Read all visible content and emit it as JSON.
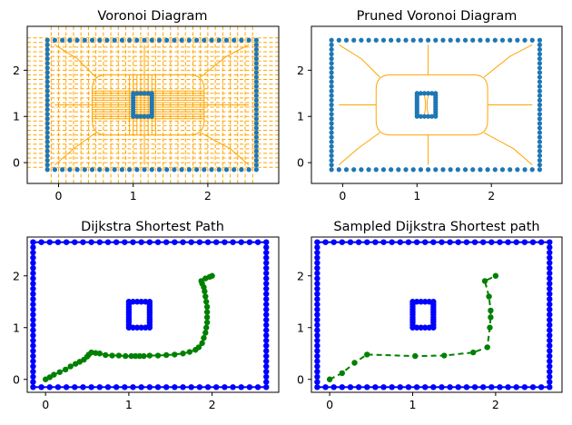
{
  "chart_data": [
    {
      "type": "line",
      "title": "Voronoi Diagram",
      "xlim": [
        -0.42,
        2.95
      ],
      "ylim": [
        -0.45,
        2.95
      ],
      "xticks": [
        0,
        1,
        2
      ],
      "yticks": [
        0,
        1,
        2
      ],
      "grid": false,
      "colors": {
        "obstacles": "#1f77b4",
        "voronoi": "#ffa500"
      },
      "obstacles": {
        "outer_rect": [
          -0.15,
          -0.15,
          2.65,
          2.65
        ],
        "inner_rect": [
          1.0,
          1.0,
          1.25,
          1.5
        ],
        "outer_spacing": 0.1,
        "inner_spacing": 0.05
      },
      "voronoi_ridges": {
        "inner_box": [
          0.45,
          0.6,
          1.95,
          1.9
        ],
        "show_dashed_rays": true
      }
    },
    {
      "type": "line",
      "title": "Pruned Voronoi Diagram",
      "xlim": [
        -0.42,
        2.95
      ],
      "ylim": [
        -0.45,
        2.95
      ],
      "xticks": [
        0,
        1,
        2
      ],
      "yticks": [
        0,
        1,
        2
      ],
      "grid": false,
      "colors": {
        "obstacles": "#1f77b4",
        "voronoi": "#ffa500"
      },
      "obstacles": {
        "outer_rect": [
          -0.15,
          -0.15,
          2.65,
          2.65
        ],
        "inner_rect": [
          1.0,
          1.0,
          1.25,
          1.5
        ],
        "outer_spacing": 0.1,
        "inner_spacing": 0.05
      },
      "voronoi_ridges": {
        "inner_box": [
          0.45,
          0.6,
          1.95,
          1.9
        ],
        "show_dashed_rays": false
      }
    },
    {
      "type": "line",
      "title": "Dijkstra Shortest Path",
      "xlim": [
        -0.22,
        2.8
      ],
      "ylim": [
        -0.25,
        2.75
      ],
      "xticks": [
        0,
        1,
        2
      ],
      "yticks": [
        0,
        1,
        2
      ],
      "grid": false,
      "colors": {
        "obstacles": "#0000ff",
        "path": "#008000"
      },
      "obstacles": {
        "outer_rect": [
          -0.15,
          -0.15,
          2.65,
          2.65
        ],
        "inner_rect": [
          1.0,
          1.0,
          1.25,
          1.5
        ],
        "outer_spacing": 0.1,
        "inner_spacing": 0.05
      },
      "path": {
        "style": "solid",
        "points": [
          [
            0,
            0
          ],
          [
            0.05,
            0.04
          ],
          [
            0.1,
            0.09
          ],
          [
            0.17,
            0.14
          ],
          [
            0.24,
            0.19
          ],
          [
            0.3,
            0.25
          ],
          [
            0.36,
            0.3
          ],
          [
            0.41,
            0.34
          ],
          [
            0.46,
            0.38
          ],
          [
            0.5,
            0.44
          ],
          [
            0.52,
            0.48
          ],
          [
            0.55,
            0.52
          ],
          [
            0.6,
            0.51
          ],
          [
            0.65,
            0.5
          ],
          [
            0.72,
            0.47
          ],
          [
            0.8,
            0.46
          ],
          [
            0.88,
            0.46
          ],
          [
            0.96,
            0.45
          ],
          [
            1.03,
            0.45
          ],
          [
            1.08,
            0.45
          ],
          [
            1.13,
            0.45
          ],
          [
            1.18,
            0.45
          ],
          [
            1.25,
            0.46
          ],
          [
            1.35,
            0.46
          ],
          [
            1.45,
            0.47
          ],
          [
            1.55,
            0.48
          ],
          [
            1.65,
            0.5
          ],
          [
            1.73,
            0.53
          ],
          [
            1.8,
            0.57
          ],
          [
            1.84,
            0.62
          ],
          [
            1.88,
            0.7
          ],
          [
            1.9,
            0.8
          ],
          [
            1.92,
            0.9
          ],
          [
            1.93,
            1.0
          ],
          [
            1.94,
            1.1
          ],
          [
            1.94,
            1.2
          ],
          [
            1.94,
            1.3
          ],
          [
            1.94,
            1.4
          ],
          [
            1.93,
            1.5
          ],
          [
            1.92,
            1.6
          ],
          [
            1.91,
            1.7
          ],
          [
            1.9,
            1.78
          ],
          [
            1.88,
            1.85
          ],
          [
            1.87,
            1.9
          ],
          [
            1.92,
            1.95
          ],
          [
            1.97,
            1.98
          ],
          [
            2.0,
            2.0
          ]
        ]
      }
    },
    {
      "type": "line",
      "title": "Sampled Dijkstra Shortest path",
      "xlim": [
        -0.22,
        2.8
      ],
      "ylim": [
        -0.25,
        2.75
      ],
      "xticks": [
        0,
        1,
        2
      ],
      "yticks": [
        0,
        1,
        2
      ],
      "grid": false,
      "colors": {
        "obstacles": "#0000ff",
        "path": "#008000"
      },
      "obstacles": {
        "outer_rect": [
          -0.15,
          -0.15,
          2.65,
          2.65
        ],
        "inner_rect": [
          1.0,
          1.0,
          1.25,
          1.5
        ],
        "outer_spacing": 0.1,
        "inner_spacing": 0.05
      },
      "path": {
        "style": "dashed",
        "points": [
          [
            0,
            0
          ],
          [
            0.15,
            0.12
          ],
          [
            0.3,
            0.32
          ],
          [
            0.45,
            0.48
          ],
          [
            1.03,
            0.45
          ],
          [
            1.38,
            0.46
          ],
          [
            1.73,
            0.52
          ],
          [
            1.9,
            0.62
          ],
          [
            1.93,
            1.0
          ],
          [
            1.94,
            1.2
          ],
          [
            1.94,
            1.33
          ],
          [
            1.92,
            1.6
          ],
          [
            1.87,
            1.9
          ],
          [
            2.0,
            2.0
          ]
        ]
      }
    }
  ]
}
